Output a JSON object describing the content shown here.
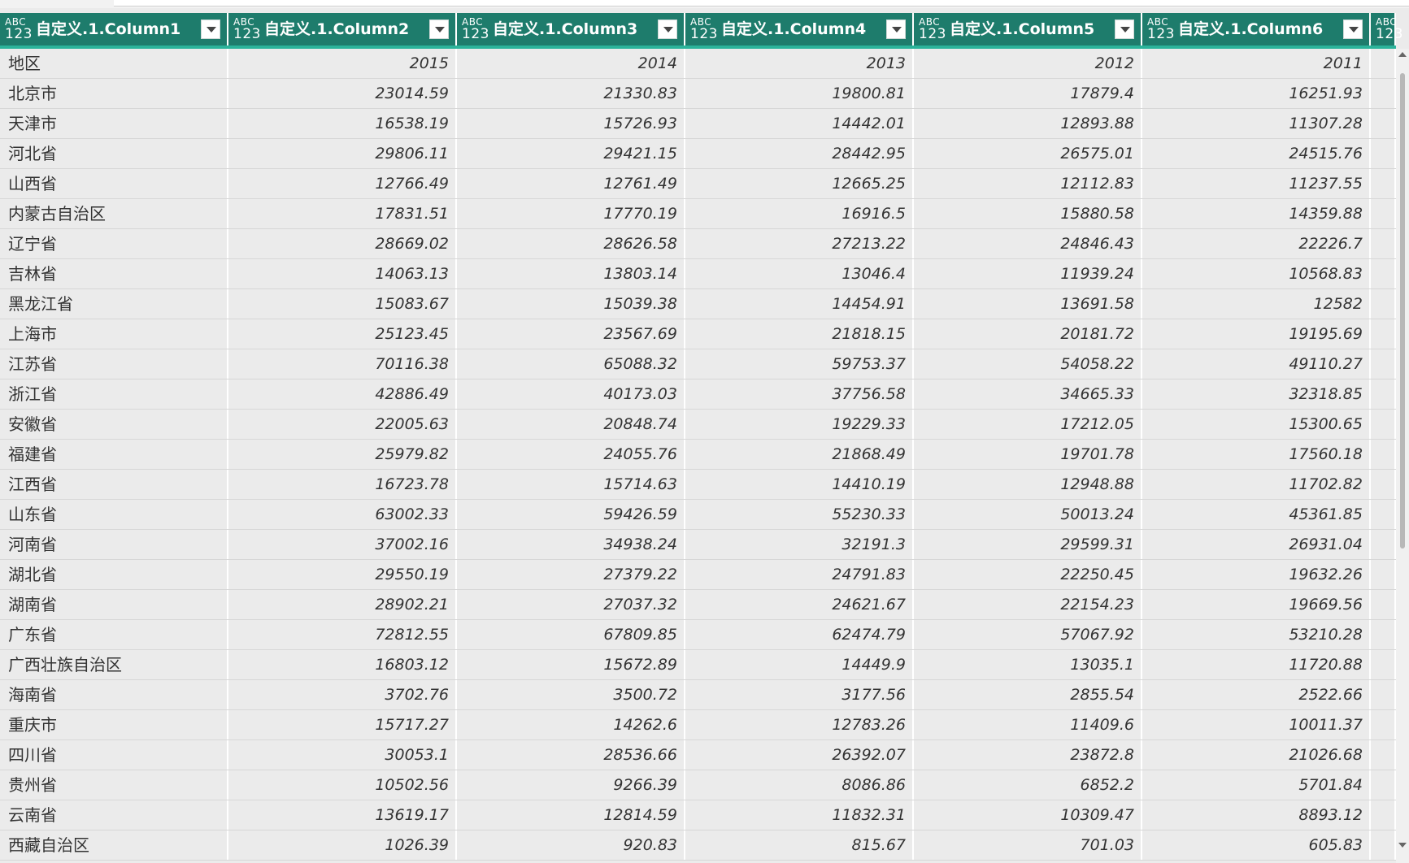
{
  "columns": [
    {
      "type_top": "ABC",
      "type_bottom": "123",
      "label": "自定义.1.Column1"
    },
    {
      "type_top": "ABC",
      "type_bottom": "123",
      "label": "自定义.1.Column2"
    },
    {
      "type_top": "ABC",
      "type_bottom": "123",
      "label": "自定义.1.Column3"
    },
    {
      "type_top": "ABC",
      "type_bottom": "123",
      "label": "自定义.1.Column4"
    },
    {
      "type_top": "ABC",
      "type_bottom": "123",
      "label": "自定义.1.Column5"
    },
    {
      "type_top": "ABC",
      "type_bottom": "123",
      "label": "自定义.1.Column6"
    },
    {
      "type_top": "ABC",
      "type_bottom": "123",
      "label": ""
    }
  ],
  "rows": [
    [
      "地区",
      "2015",
      "2014",
      "2013",
      "2012",
      "2011"
    ],
    [
      "北京市",
      "23014.59",
      "21330.83",
      "19800.81",
      "17879.4",
      "16251.93"
    ],
    [
      "天津市",
      "16538.19",
      "15726.93",
      "14442.01",
      "12893.88",
      "11307.28"
    ],
    [
      "河北省",
      "29806.11",
      "29421.15",
      "28442.95",
      "26575.01",
      "24515.76"
    ],
    [
      "山西省",
      "12766.49",
      "12761.49",
      "12665.25",
      "12112.83",
      "11237.55"
    ],
    [
      "内蒙古自治区",
      "17831.51",
      "17770.19",
      "16916.5",
      "15880.58",
      "14359.88"
    ],
    [
      "辽宁省",
      "28669.02",
      "28626.58",
      "27213.22",
      "24846.43",
      "22226.7"
    ],
    [
      "吉林省",
      "14063.13",
      "13803.14",
      "13046.4",
      "11939.24",
      "10568.83"
    ],
    [
      "黑龙江省",
      "15083.67",
      "15039.38",
      "14454.91",
      "13691.58",
      "12582"
    ],
    [
      "上海市",
      "25123.45",
      "23567.69",
      "21818.15",
      "20181.72",
      "19195.69"
    ],
    [
      "江苏省",
      "70116.38",
      "65088.32",
      "59753.37",
      "54058.22",
      "49110.27"
    ],
    [
      "浙江省",
      "42886.49",
      "40173.03",
      "37756.58",
      "34665.33",
      "32318.85"
    ],
    [
      "安徽省",
      "22005.63",
      "20848.74",
      "19229.33",
      "17212.05",
      "15300.65"
    ],
    [
      "福建省",
      "25979.82",
      "24055.76",
      "21868.49",
      "19701.78",
      "17560.18"
    ],
    [
      "江西省",
      "16723.78",
      "15714.63",
      "14410.19",
      "12948.88",
      "11702.82"
    ],
    [
      "山东省",
      "63002.33",
      "59426.59",
      "55230.33",
      "50013.24",
      "45361.85"
    ],
    [
      "河南省",
      "37002.16",
      "34938.24",
      "32191.3",
      "29599.31",
      "26931.04"
    ],
    [
      "湖北省",
      "29550.19",
      "27379.22",
      "24791.83",
      "22250.45",
      "19632.26"
    ],
    [
      "湖南省",
      "28902.21",
      "27037.32",
      "24621.67",
      "22154.23",
      "19669.56"
    ],
    [
      "广东省",
      "72812.55",
      "67809.85",
      "62474.79",
      "57067.92",
      "53210.28"
    ],
    [
      "广西壮族自治区",
      "16803.12",
      "15672.89",
      "14449.9",
      "13035.1",
      "11720.88"
    ],
    [
      "海南省",
      "3702.76",
      "3500.72",
      "3177.56",
      "2855.54",
      "2522.66"
    ],
    [
      "重庆市",
      "15717.27",
      "14262.6",
      "12783.26",
      "11409.6",
      "10011.37"
    ],
    [
      "四川省",
      "30053.1",
      "28536.66",
      "26392.07",
      "23872.8",
      "21026.68"
    ],
    [
      "贵州省",
      "10502.56",
      "9266.39",
      "8086.86",
      "6852.2",
      "5701.84"
    ],
    [
      "云南省",
      "13619.17",
      "12814.59",
      "11832.31",
      "10309.47",
      "8893.12"
    ],
    [
      "西藏自治区",
      "1026.39",
      "920.83",
      "815.67",
      "701.03",
      "605.83"
    ]
  ],
  "colors": {
    "header_bg": "#1e7c6c",
    "header_underline": "#2bb39a",
    "grid_bg": "#ebebeb"
  }
}
